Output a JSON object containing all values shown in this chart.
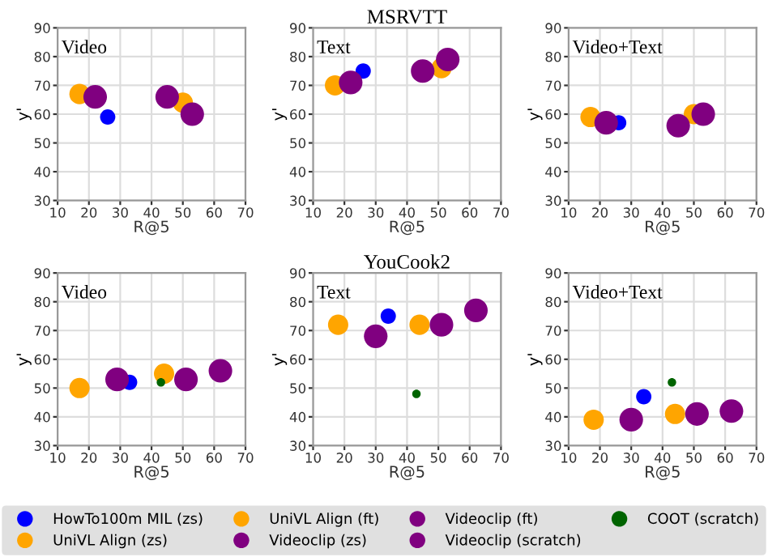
{
  "chart_data": [
    {
      "type": "bubble",
      "annotations": [
        "Video"
      ],
      "xlabel": "R@5",
      "ylabel": "y'",
      "xlim": [
        10,
        70
      ],
      "ylim": [
        30,
        90
      ],
      "xticks": [
        10,
        20,
        30,
        40,
        50,
        60,
        70
      ],
      "yticks": [
        30,
        40,
        50,
        60,
        70,
        80,
        90
      ],
      "grid": true,
      "legend": "bottom",
      "series": [
        {
          "name": "HowTo100m MIL (zs)",
          "color": "#0000ff",
          "x": [
            26
          ],
          "values": [
            59
          ],
          "sizes": [
            0.42
          ]
        },
        {
          "name": "UniVL Align (zs)",
          "color": "#ffa500",
          "x": [
            17
          ],
          "values": [
            67
          ],
          "sizes": [
            0.74
          ]
        },
        {
          "name": "UniVL Align (ft)",
          "color": "#ffa500",
          "x": [
            50
          ],
          "values": [
            64
          ],
          "sizes": [
            0.74
          ]
        },
        {
          "name": "Videoclip (zs)",
          "color": "#800080",
          "x": [
            22
          ],
          "values": [
            66
          ],
          "sizes": [
            1
          ]
        },
        {
          "name": "Videoclip (ft)",
          "color": "#800080",
          "x": [
            53
          ],
          "values": [
            60
          ],
          "sizes": [
            1
          ]
        },
        {
          "name": "Videoclip (scratch)",
          "color": "#800080",
          "x": [
            45
          ],
          "values": [
            66
          ],
          "sizes": [
            1
          ]
        }
      ]
    },
    {
      "type": "bubble",
      "title": "MSRVTT",
      "annotations": [
        "Text"
      ],
      "xlabel": "R@5",
      "ylabel": "y'",
      "xlim": [
        10,
        70
      ],
      "ylim": [
        30,
        90
      ],
      "xticks": [
        10,
        20,
        30,
        40,
        50,
        60,
        70
      ],
      "yticks": [
        30,
        40,
        50,
        60,
        70,
        80,
        90
      ],
      "grid": true,
      "legend": "bottom",
      "series": [
        {
          "name": "HowTo100m MIL (zs)",
          "color": "#0000ff",
          "x": [
            26
          ],
          "values": [
            75
          ],
          "sizes": [
            0.42
          ]
        },
        {
          "name": "UniVL Align (zs)",
          "color": "#ffa500",
          "x": [
            17
          ],
          "values": [
            70
          ],
          "sizes": [
            0.74
          ]
        },
        {
          "name": "UniVL Align (ft)",
          "color": "#ffa500",
          "x": [
            51
          ],
          "values": [
            76
          ],
          "sizes": [
            0.74
          ]
        },
        {
          "name": "Videoclip (zs)",
          "color": "#800080",
          "x": [
            22
          ],
          "values": [
            71
          ],
          "sizes": [
            1
          ]
        },
        {
          "name": "Videoclip (ft)",
          "color": "#800080",
          "x": [
            53
          ],
          "values": [
            79
          ],
          "sizes": [
            1
          ]
        },
        {
          "name": "Videoclip (scratch)",
          "color": "#800080",
          "x": [
            45
          ],
          "values": [
            75
          ],
          "sizes": [
            1
          ]
        }
      ]
    },
    {
      "type": "bubble",
      "annotations": [
        "Video+Text"
      ],
      "xlabel": "R@5",
      "ylabel": "y'",
      "xlim": [
        10,
        70
      ],
      "ylim": [
        30,
        90
      ],
      "xticks": [
        10,
        20,
        30,
        40,
        50,
        60,
        70
      ],
      "yticks": [
        30,
        40,
        50,
        60,
        70,
        80,
        90
      ],
      "grid": true,
      "legend": "bottom",
      "series": [
        {
          "name": "HowTo100m MIL (zs)",
          "color": "#0000ff",
          "x": [
            26
          ],
          "values": [
            57
          ],
          "sizes": [
            0.42
          ]
        },
        {
          "name": "UniVL Align (zs)",
          "color": "#ffa500",
          "x": [
            17
          ],
          "values": [
            59
          ],
          "sizes": [
            0.74
          ]
        },
        {
          "name": "UniVL Align (ft)",
          "color": "#ffa500",
          "x": [
            50
          ],
          "values": [
            60
          ],
          "sizes": [
            0.74
          ]
        },
        {
          "name": "Videoclip (zs)",
          "color": "#800080",
          "x": [
            22
          ],
          "values": [
            57
          ],
          "sizes": [
            1
          ]
        },
        {
          "name": "Videoclip (ft)",
          "color": "#800080",
          "x": [
            53
          ],
          "values": [
            60
          ],
          "sizes": [
            1
          ]
        },
        {
          "name": "Videoclip (scratch)",
          "color": "#800080",
          "x": [
            45
          ],
          "values": [
            56
          ],
          "sizes": [
            1
          ]
        }
      ]
    },
    {
      "type": "bubble",
      "annotations": [
        "Video"
      ],
      "xlabel": "R@5",
      "ylabel": "y'",
      "xlim": [
        10,
        70
      ],
      "ylim": [
        30,
        90
      ],
      "xticks": [
        10,
        20,
        30,
        40,
        50,
        60,
        70
      ],
      "yticks": [
        30,
        40,
        50,
        60,
        70,
        80,
        90
      ],
      "grid": true,
      "legend": "bottom",
      "series": [
        {
          "name": "HowTo100m MIL (zs)",
          "color": "#0000ff",
          "x": [
            33
          ],
          "values": [
            52
          ],
          "sizes": [
            0.42
          ]
        },
        {
          "name": "UniVL Align (zs)",
          "color": "#ffa500",
          "x": [
            17
          ],
          "values": [
            50
          ],
          "sizes": [
            0.74
          ]
        },
        {
          "name": "UniVL Align (ft)",
          "color": "#ffa500",
          "x": [
            44
          ],
          "values": [
            55
          ],
          "sizes": [
            0.74
          ]
        },
        {
          "name": "Videoclip (zs)",
          "color": "#800080",
          "x": [
            51
          ],
          "values": [
            53
          ],
          "sizes": [
            1
          ]
        },
        {
          "name": "Videoclip (ft)",
          "color": "#800080",
          "x": [
            62
          ],
          "values": [
            56
          ],
          "sizes": [
            1
          ]
        },
        {
          "name": "Videoclip (scratch)",
          "color": "#800080",
          "x": [
            29
          ],
          "values": [
            53
          ],
          "sizes": [
            1
          ]
        },
        {
          "name": "COOT (scratch)",
          "color": "#006400",
          "x": [
            43
          ],
          "values": [
            52
          ],
          "sizes": [
            0.13
          ]
        }
      ]
    },
    {
      "type": "bubble",
      "title": "YouCook2",
      "annotations": [
        "Text"
      ],
      "xlabel": "R@5",
      "ylabel": "y'",
      "xlim": [
        10,
        70
      ],
      "ylim": [
        30,
        90
      ],
      "xticks": [
        10,
        20,
        30,
        40,
        50,
        60,
        70
      ],
      "yticks": [
        30,
        40,
        50,
        60,
        70,
        80,
        90
      ],
      "grid": true,
      "legend": "bottom",
      "series": [
        {
          "name": "HowTo100m MIL (zs)",
          "color": "#0000ff",
          "x": [
            34
          ],
          "values": [
            75
          ],
          "sizes": [
            0.42
          ]
        },
        {
          "name": "UniVL Align (zs)",
          "color": "#ffa500",
          "x": [
            18
          ],
          "values": [
            72
          ],
          "sizes": [
            0.74
          ]
        },
        {
          "name": "UniVL Align (ft)",
          "color": "#ffa500",
          "x": [
            44
          ],
          "values": [
            72
          ],
          "sizes": [
            0.74
          ]
        },
        {
          "name": "Videoclip (zs)",
          "color": "#800080",
          "x": [
            51
          ],
          "values": [
            72
          ],
          "sizes": [
            1
          ]
        },
        {
          "name": "Videoclip (ft)",
          "color": "#800080",
          "x": [
            62
          ],
          "values": [
            77
          ],
          "sizes": [
            1
          ]
        },
        {
          "name": "Videoclip (scratch)",
          "color": "#800080",
          "x": [
            30
          ],
          "values": [
            68
          ],
          "sizes": [
            1
          ]
        },
        {
          "name": "COOT (scratch)",
          "color": "#006400",
          "x": [
            43
          ],
          "values": [
            48
          ],
          "sizes": [
            0.13
          ]
        }
      ]
    },
    {
      "type": "bubble",
      "annotations": [
        "Video+Text"
      ],
      "xlabel": "R@5",
      "ylabel": "y'",
      "xlim": [
        10,
        70
      ],
      "ylim": [
        30,
        90
      ],
      "xticks": [
        10,
        20,
        30,
        40,
        50,
        60,
        70
      ],
      "yticks": [
        30,
        40,
        50,
        60,
        70,
        80,
        90
      ],
      "grid": true,
      "legend": "bottom",
      "series": [
        {
          "name": "HowTo100m MIL (zs)",
          "color": "#0000ff",
          "x": [
            34
          ],
          "values": [
            47
          ],
          "sizes": [
            0.42
          ]
        },
        {
          "name": "UniVL Align (zs)",
          "color": "#ffa500",
          "x": [
            18
          ],
          "values": [
            39
          ],
          "sizes": [
            0.74
          ]
        },
        {
          "name": "UniVL Align (ft)",
          "color": "#ffa500",
          "x": [
            44
          ],
          "values": [
            41
          ],
          "sizes": [
            0.74
          ]
        },
        {
          "name": "Videoclip (zs)",
          "color": "#800080",
          "x": [
            51
          ],
          "values": [
            41
          ],
          "sizes": [
            1
          ]
        },
        {
          "name": "Videoclip (ft)",
          "color": "#800080",
          "x": [
            62
          ],
          "values": [
            42
          ],
          "sizes": [
            1
          ]
        },
        {
          "name": "Videoclip (scratch)",
          "color": "#800080",
          "x": [
            30
          ],
          "values": [
            39
          ],
          "sizes": [
            1
          ]
        },
        {
          "name": "COOT (scratch)",
          "color": "#006400",
          "x": [
            43
          ],
          "values": [
            52
          ],
          "sizes": [
            0.13
          ]
        }
      ]
    }
  ]
}
